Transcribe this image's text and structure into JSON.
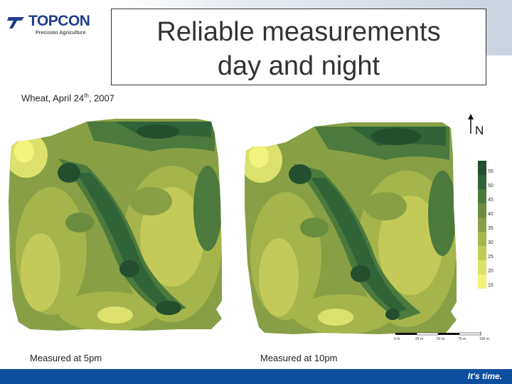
{
  "header": {
    "logo_text": "TOPCON",
    "logo_sub": "Precision Agriculture",
    "title_line1": "Reliable measurements",
    "title_line2": "day and night"
  },
  "subtitle": {
    "prefix": "Wheat, April 24",
    "sup": "th",
    "suffix": ", 2007"
  },
  "north_label": "N",
  "legend": {
    "labels": [
      "55",
      "50",
      "45",
      "40",
      "35",
      "30",
      "25",
      "20",
      "15"
    ],
    "colors": [
      "#234f2e",
      "#2f6438",
      "#4b7a3c",
      "#6a8d3f",
      "#889f45",
      "#a5b54c",
      "#c3ca58",
      "#dbe16a",
      "#f0f37c"
    ]
  },
  "scale": {
    "labels": [
      "0 m",
      "25 m",
      "50 m",
      "75 m",
      "100 m"
    ]
  },
  "captions": {
    "left": "Measured at 5pm",
    "right": "Measured at 10pm"
  },
  "footer": {
    "tagline": "It's time."
  }
}
